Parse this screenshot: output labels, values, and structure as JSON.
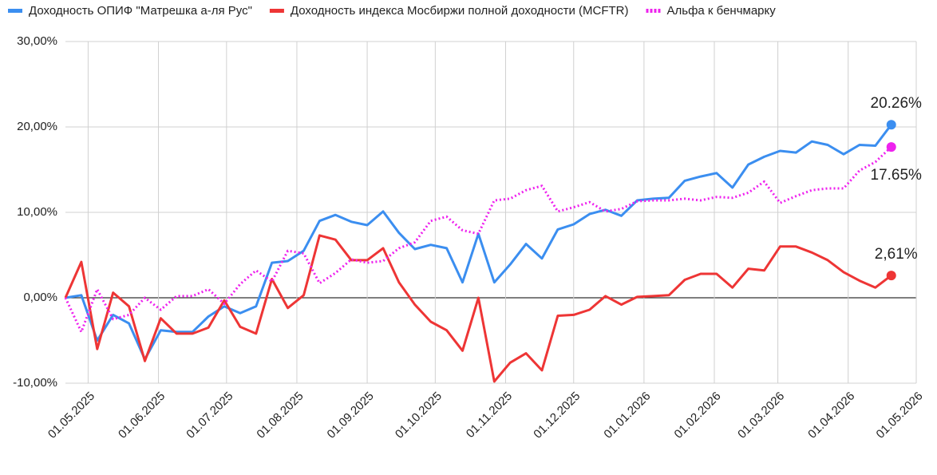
{
  "chart_data": {
    "type": "line",
    "x": [
      "21.04.2025",
      "28.04.2025",
      "05.05.2025",
      "12.05.2025",
      "19.05.2025",
      "26.05.2025",
      "02.06.2025",
      "09.06.2025",
      "16.06.2025",
      "23.06.2025",
      "30.06.2025",
      "07.07.2025",
      "14.07.2025",
      "21.07.2025",
      "28.07.2025",
      "04.08.2025",
      "11.08.2025",
      "18.08.2025",
      "25.08.2025",
      "01.09.2025",
      "08.09.2025",
      "15.09.2025",
      "22.09.2025",
      "29.09.2025",
      "06.10.2025",
      "13.10.2025",
      "20.10.2025",
      "27.10.2025",
      "03.11.2025",
      "10.11.2025",
      "17.11.2025",
      "24.11.2025",
      "01.12.2025",
      "08.12.2025",
      "15.12.2025",
      "22.12.2025",
      "29.12.2025",
      "05.01.2026",
      "12.01.2026",
      "19.01.2026",
      "26.01.2026",
      "02.02.2026",
      "09.02.2026",
      "16.02.2026",
      "23.02.2026",
      "02.03.2026",
      "09.03.2026",
      "16.03.2026",
      "23.03.2026",
      "30.03.2026",
      "06.04.2026",
      "13.04.2026",
      "20.04.2026"
    ],
    "series": [
      {
        "name": "Доходность ОПИФ \"Матрешка а-ля Рус\"",
        "color": "#3b8ef0",
        "dash": "solid",
        "values": [
          0,
          0.3,
          -5,
          -2,
          -3,
          -7.2,
          -3.8,
          -4,
          -4,
          -2.2,
          -1,
          -1.8,
          -1,
          4.1,
          4.3,
          5.5,
          9,
          9.7,
          8.9,
          8.5,
          10.1,
          7.6,
          5.7,
          6.2,
          5.8,
          1.8,
          7.5,
          1.8,
          3.9,
          6.3,
          4.6,
          8,
          8.6,
          9.8,
          10.3,
          9.6,
          11.4,
          11.6,
          11.7,
          13.7,
          14.2,
          14.6,
          12.9,
          15.6,
          16.5,
          17.2,
          17,
          18.3,
          17.9,
          16.8,
          17.9,
          17.8,
          20.26
        ],
        "value_labels": [
          null,
          null,
          null,
          null,
          null,
          null,
          null,
          null,
          null,
          null,
          null,
          null,
          null,
          null,
          null,
          null,
          null,
          null,
          null,
          null,
          null,
          null,
          null,
          null,
          null,
          null,
          null,
          null,
          null,
          null,
          null,
          null,
          null,
          null,
          null,
          null,
          null,
          null,
          null,
          null,
          null,
          null,
          null,
          null,
          null,
          null,
          null,
          null,
          null,
          null,
          null,
          null,
          "20.26%"
        ]
      },
      {
        "name": "Доходность индекса Мосбиржи полной доходности (MCFTR)",
        "color": "#ee3535",
        "dash": "solid",
        "values": [
          0,
          4.2,
          -6,
          0.6,
          -1,
          -7.4,
          -2.4,
          -4.2,
          -4.2,
          -3.5,
          -0.3,
          -3.4,
          -4.2,
          2.2,
          -1.2,
          0.3,
          7.3,
          6.8,
          4.4,
          4.4,
          5.8,
          1.8,
          -0.8,
          -2.8,
          -3.8,
          -6.2,
          0,
          -9.8,
          -7.6,
          -6.5,
          -8.5,
          -2.1,
          -2,
          -1.4,
          0.2,
          -0.8,
          0.1,
          0.2,
          0.3,
          2.1,
          2.8,
          2.8,
          1.2,
          3.4,
          3.2,
          6,
          6,
          5.3,
          4.4,
          3,
          2,
          1.2,
          2.61
        ],
        "value_labels": [
          null,
          null,
          null,
          null,
          null,
          null,
          null,
          null,
          null,
          null,
          null,
          null,
          null,
          null,
          null,
          null,
          null,
          null,
          null,
          null,
          null,
          null,
          null,
          null,
          null,
          null,
          null,
          null,
          null,
          null,
          null,
          null,
          null,
          null,
          null,
          null,
          null,
          null,
          null,
          null,
          null,
          null,
          null,
          null,
          null,
          null,
          null,
          null,
          null,
          null,
          null,
          null,
          "2,61%"
        ]
      },
      {
        "name": "Альфа к бенчмарку",
        "color": "#ee22ee",
        "dash": "dotted",
        "values": [
          0,
          -4,
          1,
          -2.5,
          -2,
          0,
          -1.4,
          0.2,
          0.2,
          1,
          -0.7,
          1.6,
          3.2,
          1.9,
          5.5,
          5.2,
          1.7,
          2.9,
          4.5,
          4.1,
          4.3,
          5.8,
          6.5,
          9,
          9.5,
          7.9,
          7.5,
          11.4,
          11.6,
          12.6,
          13.1,
          10.1,
          10.6,
          11.2,
          10.1,
          10.4,
          11.3,
          11.4,
          11.4,
          11.6,
          11.4,
          11.8,
          11.7,
          12.3,
          13.6,
          11.1,
          11.9,
          12.6,
          12.8,
          12.8,
          14.9,
          15.9,
          17.65
        ],
        "value_labels": [
          null,
          null,
          null,
          null,
          null,
          null,
          null,
          null,
          null,
          null,
          null,
          null,
          null,
          null,
          null,
          null,
          null,
          null,
          null,
          null,
          null,
          null,
          null,
          null,
          null,
          null,
          null,
          null,
          null,
          null,
          null,
          null,
          null,
          null,
          null,
          null,
          null,
          null,
          null,
          null,
          null,
          null,
          null,
          null,
          null,
          null,
          null,
          null,
          null,
          null,
          null,
          null,
          "17.65%"
        ]
      }
    ],
    "xlim": [
      "21.04.2025",
      "01.05.2026"
    ],
    "xticks": [
      "01.05.2025",
      "01.06.2025",
      "01.07.2025",
      "01.08.2025",
      "01.09.2025",
      "01.10.2025",
      "01.11.2025",
      "01.12.2025",
      "01.01.2026",
      "01.02.2026",
      "01.03.2026",
      "01.04.2026",
      "01.05.2026"
    ],
    "ylim": [
      -10,
      30
    ],
    "yticks": [
      {
        "value": -10,
        "label": "-10,00%"
      },
      {
        "value": 0,
        "label": "0,00%"
      },
      {
        "value": 10,
        "label": "10,00%"
      },
      {
        "value": 20,
        "label": "20,00%"
      },
      {
        "value": 30,
        "label": "30,00%"
      }
    ],
    "grid": true,
    "legend": "top"
  }
}
